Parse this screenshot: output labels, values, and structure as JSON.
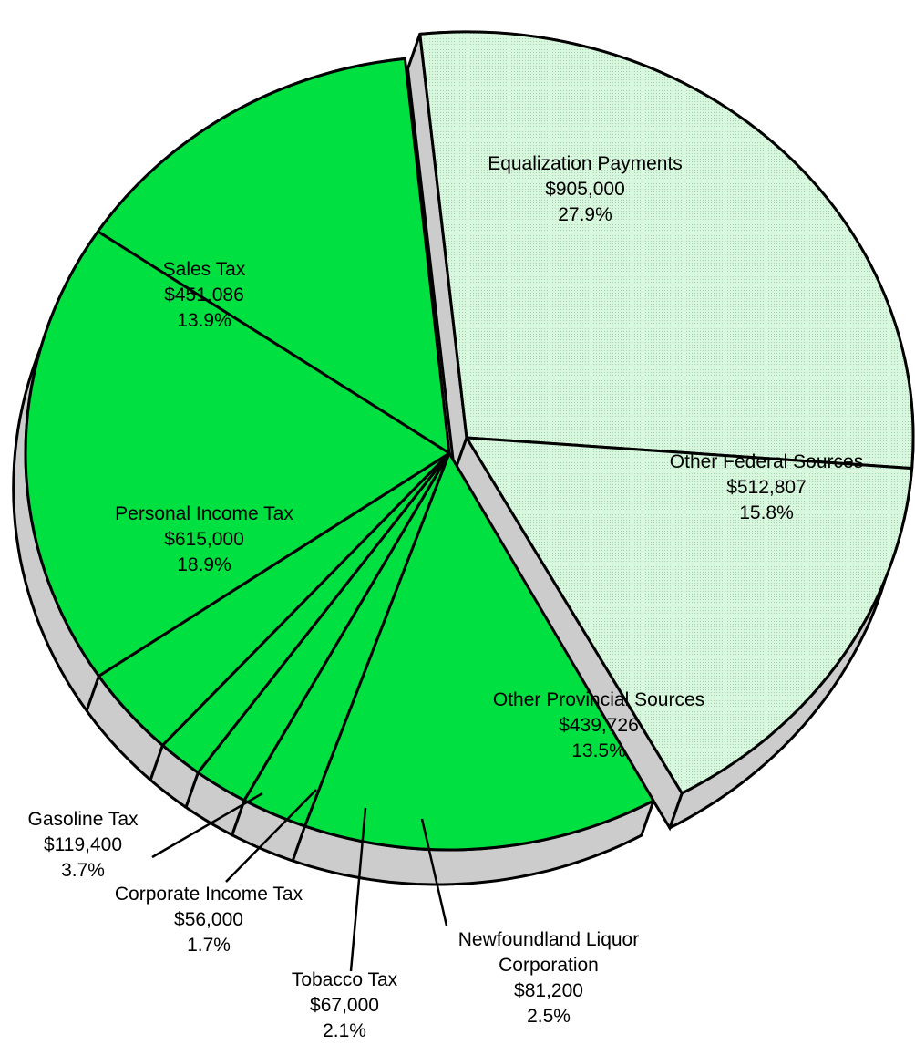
{
  "chart_data": {
    "type": "pie",
    "style": "3d-exploded",
    "slices": [
      {
        "label": "Equalization Payments",
        "value_text": "$905,000",
        "value": 905000,
        "percent_text": "27.9%",
        "percent": 27.9,
        "group": "federal",
        "color": "#d3f5d8"
      },
      {
        "label": "Other Federal Sources",
        "value_text": "$512,807",
        "value": 512807,
        "percent_text": "15.8%",
        "percent": 15.8,
        "group": "federal",
        "color": "#d3f5d8"
      },
      {
        "label": "Other Provincial Sources",
        "value_text": "$439,726",
        "value": 439726,
        "percent_text": "13.5%",
        "percent": 13.5,
        "group": "provincial",
        "color": "#00e040"
      },
      {
        "label": "Newfoundland Liquor Corporation",
        "value_text": "$81,200",
        "value": 81200,
        "percent_text": "2.5%",
        "percent": 2.5,
        "group": "provincial",
        "color": "#00e040"
      },
      {
        "label": "Tobacco Tax",
        "value_text": "$67,000",
        "value": 67000,
        "percent_text": "2.1%",
        "percent": 2.1,
        "group": "provincial",
        "color": "#00e040"
      },
      {
        "label": "Corporate Income Tax",
        "value_text": "$56,000",
        "value": 56000,
        "percent_text": "1.7%",
        "percent": 1.7,
        "group": "provincial",
        "color": "#00e040"
      },
      {
        "label": "Gasoline Tax",
        "value_text": "$119,400",
        "value": 119400,
        "percent_text": "3.7%",
        "percent": 3.7,
        "group": "provincial",
        "color": "#00e040"
      },
      {
        "label": "Personal Income Tax",
        "value_text": "$615,000",
        "value": 615000,
        "percent_text": "18.9%",
        "percent": 18.9,
        "group": "provincial",
        "color": "#00e040"
      },
      {
        "label": "Sales Tax",
        "value_text": "$451,086",
        "value": 451086,
        "percent_text": "13.9%",
        "percent": 13.9,
        "group": "provincial",
        "color": "#00e040"
      }
    ],
    "label_lines": [
      [
        "Equalization Payments",
        "$905,000",
        "27.9%"
      ],
      [
        "Other Federal Sources",
        "$512,807",
        "15.8%"
      ],
      [
        "Other Provincial Sources",
        "$439,726",
        "13.5%"
      ],
      [
        "Newfoundland Liquor",
        "Corporation",
        "$81,200",
        "2.5%"
      ],
      [
        "Tobacco Tax",
        "$67,000",
        "2.1%"
      ],
      [
        "Corporate Income Tax",
        "$56,000",
        "1.7%"
      ],
      [
        "Gasoline Tax",
        "$119,400",
        "3.7%"
      ],
      [
        "Personal Income Tax",
        "$615,000",
        "18.9%"
      ],
      [
        "Sales Tax",
        "$451,086",
        "13.9%"
      ]
    ],
    "side_color": "#cccccc",
    "outline_color": "#000000"
  }
}
